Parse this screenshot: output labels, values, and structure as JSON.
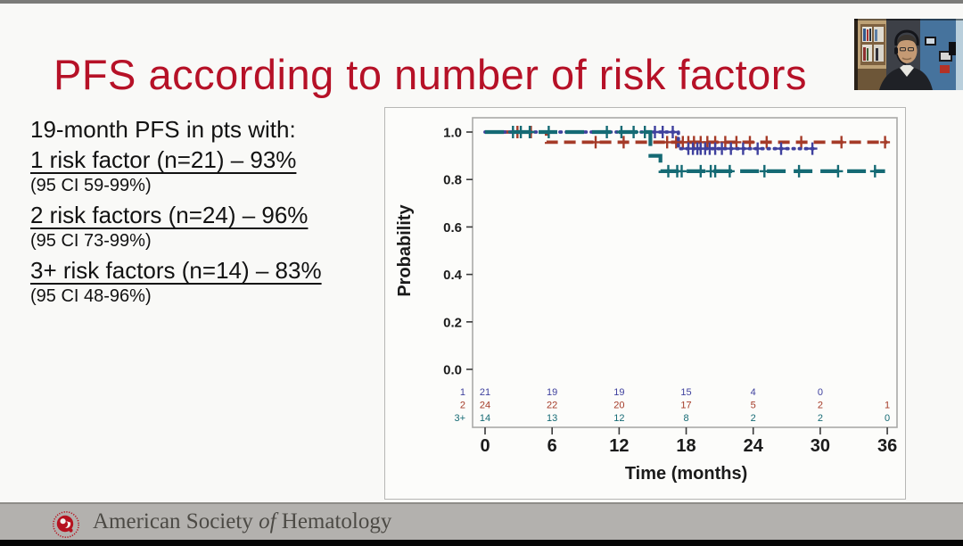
{
  "slide": {
    "title": "PFS according to number of risk factors",
    "title_color": "#b61127",
    "stats": {
      "heading": "19-month PFS in pts with:",
      "items": [
        {
          "line": "1 risk factor (n=21) – 93%",
          "ci": "(95 CI 59-99%)"
        },
        {
          "line": "2 risk factors (n=24) – 96%",
          "ci": "(95 CI 73-99%)"
        },
        {
          "line": "3+ risk factors (n=14) – 83%",
          "ci": "(95 CI 48-96%)"
        }
      ]
    }
  },
  "chart_data": {
    "type": "line",
    "subtype": "kaplan-meier-step",
    "title": "",
    "xlabel": "Time (months)",
    "ylabel": "Probability",
    "xlim": [
      0,
      36
    ],
    "ylim": [
      0.0,
      1.0
    ],
    "xticks": [
      0,
      6,
      12,
      18,
      24,
      30,
      36
    ],
    "yticks": [
      "1.0",
      "0.8",
      "0.6",
      "0.4",
      "0.2",
      "0.0"
    ],
    "grid": false,
    "legend": "none",
    "series": [
      {
        "name": "1 risk factor",
        "color": "#3f419e",
        "dash": "dotted",
        "steps": [
          [
            0,
            1.0
          ],
          [
            17.3,
            1.0
          ],
          [
            17.3,
            0.93
          ],
          [
            29.4,
            0.93
          ]
        ],
        "censors": [
          [
            15.2,
            1.0
          ],
          [
            15.9,
            1.0
          ],
          [
            16.8,
            1.0
          ],
          [
            18.2,
            0.93
          ],
          [
            18.6,
            0.93
          ],
          [
            19.0,
            0.93
          ],
          [
            19.3,
            0.93
          ],
          [
            19.7,
            0.93
          ],
          [
            20.1,
            0.93
          ],
          [
            20.6,
            0.93
          ],
          [
            21.2,
            0.93
          ],
          [
            22.0,
            0.93
          ],
          [
            23.1,
            0.93
          ],
          [
            24.4,
            0.93
          ],
          [
            26.5,
            0.93
          ],
          [
            29.3,
            0.93
          ]
        ]
      },
      {
        "name": "2 risk factors",
        "color": "#a53b28",
        "dash": "dashed",
        "steps": [
          [
            0,
            1.0
          ],
          [
            5.5,
            1.0
          ],
          [
            5.5,
            0.957
          ],
          [
            36,
            0.957
          ]
        ],
        "censors": [
          [
            2.9,
            1.0
          ],
          [
            4.1,
            1.0
          ],
          [
            9.9,
            0.957
          ],
          [
            12.4,
            0.957
          ],
          [
            16.3,
            0.957
          ],
          [
            17.1,
            0.957
          ],
          [
            17.7,
            0.957
          ],
          [
            18.2,
            0.957
          ],
          [
            18.7,
            0.957
          ],
          [
            19.3,
            0.957
          ],
          [
            19.9,
            0.957
          ],
          [
            20.6,
            0.957
          ],
          [
            21.5,
            0.957
          ],
          [
            22.5,
            0.957
          ],
          [
            23.7,
            0.957
          ],
          [
            25.2,
            0.957
          ],
          [
            28.3,
            0.957
          ],
          [
            31.9,
            0.957
          ],
          [
            35.8,
            0.957
          ]
        ]
      },
      {
        "name": "3+ risk factors",
        "color": "#156a74",
        "dash": "longdash",
        "steps": [
          [
            0,
            1.0
          ],
          [
            14.8,
            1.0
          ],
          [
            14.8,
            0.9
          ],
          [
            15.7,
            0.9
          ],
          [
            15.7,
            0.835
          ],
          [
            35.8,
            0.835
          ]
        ],
        "censors": [
          [
            2.5,
            1.0
          ],
          [
            3.2,
            1.0
          ],
          [
            4.0,
            1.0
          ],
          [
            5.7,
            1.0
          ],
          [
            10.9,
            1.0
          ],
          [
            12.2,
            1.0
          ],
          [
            13.3,
            1.0
          ],
          [
            14.3,
            1.0
          ],
          [
            16.4,
            0.835
          ],
          [
            17.2,
            0.835
          ],
          [
            17.6,
            0.835
          ],
          [
            19.3,
            0.835
          ],
          [
            20.2,
            0.835
          ],
          [
            20.6,
            0.835
          ],
          [
            21.9,
            0.835
          ],
          [
            25.0,
            0.835
          ],
          [
            28.1,
            0.835
          ],
          [
            31.6,
            0.835
          ],
          [
            34.9,
            0.835
          ]
        ]
      }
    ],
    "at_risk": {
      "timepoints": [
        0,
        6,
        12,
        18,
        24,
        30,
        36
      ],
      "rows": [
        {
          "label": "1",
          "values": [
            "21",
            "19",
            "19",
            "15",
            "4",
            "0",
            ""
          ]
        },
        {
          "label": "2",
          "values": [
            "24",
            "22",
            "20",
            "17",
            "5",
            "2",
            "1"
          ]
        },
        {
          "label": "3+",
          "values": [
            "14",
            "13",
            "12",
            "8",
            "2",
            "2",
            "0"
          ]
        }
      ]
    }
  },
  "footer": {
    "org_pre": "American Society ",
    "org_of": "of",
    "org_post": " Hematology",
    "logo_icon": "ash-logo",
    "logo_color": "#b5121f"
  },
  "webcam": {
    "label": "presenter-video"
  }
}
